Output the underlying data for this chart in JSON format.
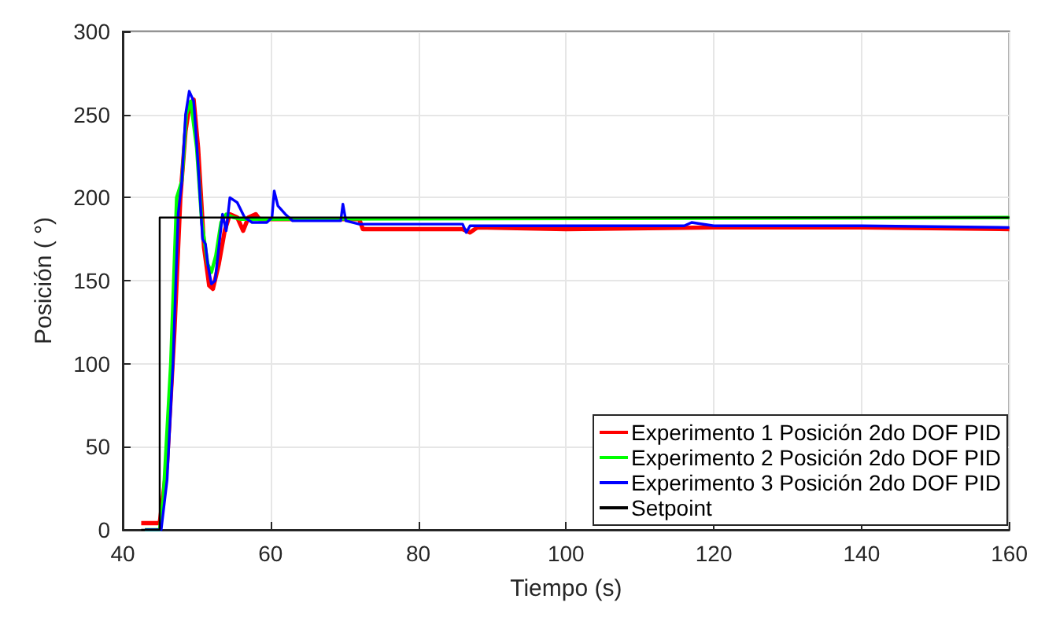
{
  "chart_data": {
    "type": "line",
    "xlabel": "Tiempo (s)",
    "ylabel": "Posición ( °)",
    "xlim": [
      40,
      160
    ],
    "ylim": [
      0,
      300
    ],
    "xticks": [
      40,
      60,
      80,
      100,
      120,
      140,
      160
    ],
    "yticks": [
      0,
      50,
      100,
      150,
      200,
      250,
      300
    ],
    "grid": true,
    "legend": "bottom right",
    "marker": "none",
    "line_style": "solid",
    "series": [
      {
        "name": "Experimento 1 Posición 2do DOF PID",
        "color": "#ff0000",
        "x": [
          42.5,
          45,
          46,
          47,
          47.8,
          48.5,
          49,
          49.6,
          50.2,
          51,
          51.7,
          52.2,
          53,
          53.8,
          54.5,
          55.5,
          56.3,
          57,
          58,
          58.5,
          60,
          72,
          72.5,
          86,
          87,
          88,
          100,
          120,
          140,
          160
        ],
        "values": [
          4,
          4,
          40,
          120,
          200,
          240,
          255,
          259,
          230,
          170,
          147,
          145,
          160,
          180,
          190,
          188,
          180,
          188,
          190,
          187,
          187,
          187,
          181,
          181,
          179,
          182,
          181,
          182,
          182,
          181
        ]
      },
      {
        "name": "Experimento 2 Posición 2do DOF PID",
        "color": "#00ff00",
        "x": [
          43,
          45,
          45.5,
          46.5,
          47.3,
          48,
          48.6,
          49.2,
          50,
          50.7,
          51.5,
          52,
          52.6,
          53.3,
          54,
          55,
          56,
          160
        ],
        "values": [
          0,
          0,
          20,
          100,
          200,
          210,
          250,
          258,
          230,
          185,
          160,
          155,
          165,
          185,
          190,
          188,
          187,
          188
        ]
      },
      {
        "name": "Experimento 3 Posición 2do DOF PID",
        "color": "#0000ff",
        "x": [
          43,
          45.2,
          46,
          46.8,
          47.5,
          48,
          48.5,
          49,
          49.6,
          50.2,
          50.8,
          51.2,
          51.5,
          52,
          52.5,
          53,
          53.5,
          54,
          54.5,
          55.5,
          56.5,
          57.5,
          59.5,
          60.2,
          60.5,
          61,
          62,
          63,
          69.5,
          69.8,
          70.2,
          72,
          86,
          86.5,
          87,
          100,
          116,
          117,
          120,
          140,
          160
        ],
        "values": [
          0,
          0,
          30,
          100,
          190,
          210,
          250,
          264,
          258,
          220,
          175,
          172,
          160,
          148,
          150,
          170,
          190,
          180,
          200,
          197,
          188,
          185,
          185,
          188,
          204,
          195,
          190,
          186,
          186,
          196,
          186,
          184,
          184,
          179,
          183,
          183,
          183,
          185,
          183,
          183,
          182
        ]
      },
      {
        "name": "Setpoint",
        "color": "#000000",
        "x": [
          42.5,
          45,
          45,
          160
        ],
        "values": [
          0,
          0,
          188,
          188
        ]
      }
    ]
  }
}
